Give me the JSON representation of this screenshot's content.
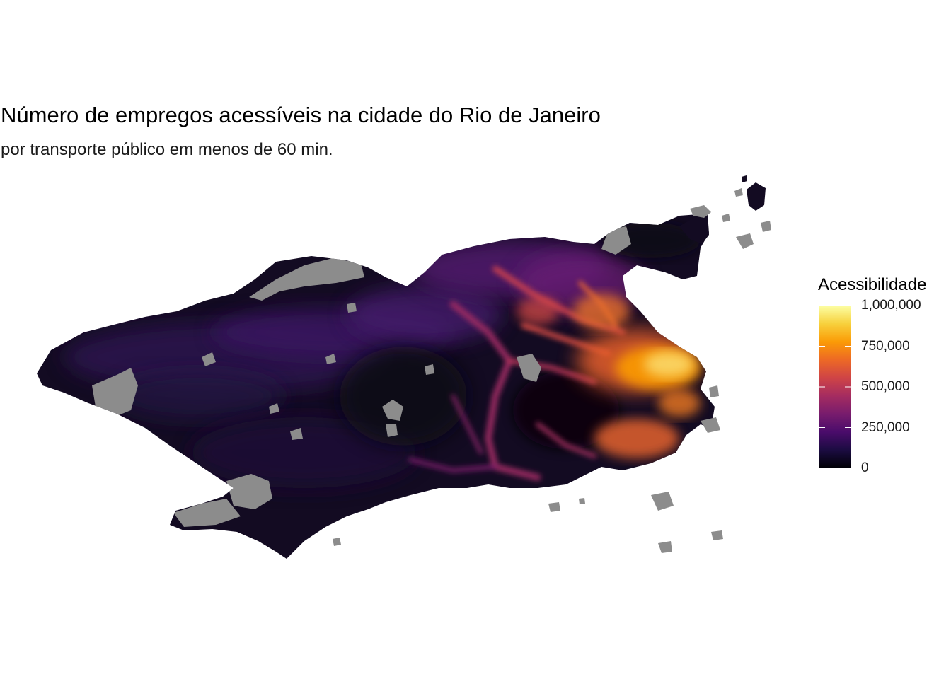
{
  "title": "Número de empregos acessíveis na cidade do Rio de Janeiro",
  "subtitle": "por transporte público em menos de 60 min.",
  "legend": {
    "title": "Acessibilidade",
    "min": 0,
    "max": 1000000,
    "breaks": [
      {
        "value": 0,
        "label": "0"
      },
      {
        "value": 250000,
        "label": "250,000"
      },
      {
        "value": 500000,
        "label": "500,000"
      },
      {
        "value": 750000,
        "label": "750,000"
      },
      {
        "value": 1000000,
        "label": "1,000,000"
      }
    ],
    "palette": [
      "#000004",
      "#1b0c41",
      "#4a0c6b",
      "#781c6d",
      "#a52c60",
      "#cf4446",
      "#ed6925",
      "#fb9b06",
      "#f7d13d",
      "#fcffa4"
    ]
  },
  "colors": {
    "missing": "#8c8c8c",
    "background": "#ffffff"
  }
}
